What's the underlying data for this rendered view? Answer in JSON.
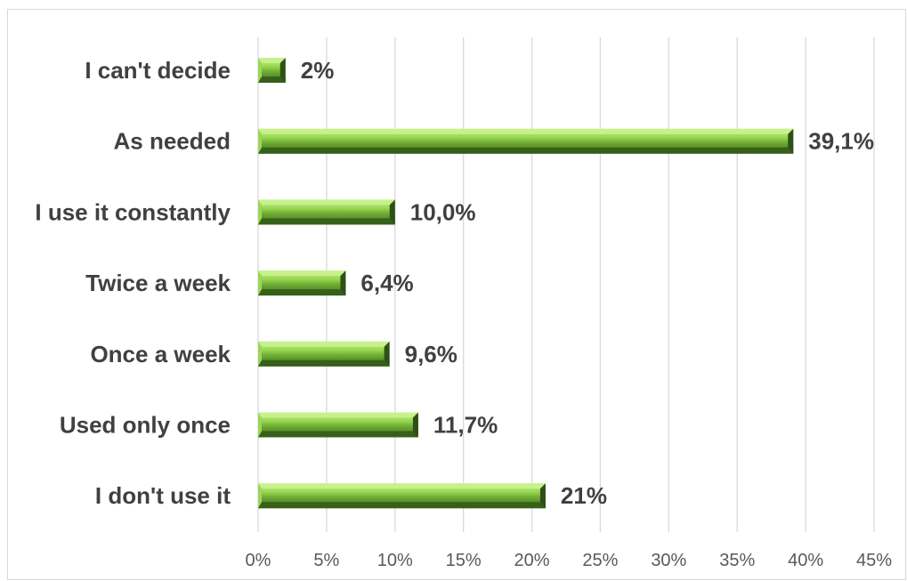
{
  "chart_data": {
    "type": "bar",
    "orientation": "horizontal",
    "categories": [
      "I can't decide",
      "As needed",
      "I use it constantly",
      "Twice a week",
      "Once a week",
      "Used only once",
      "I don't use it"
    ],
    "values": [
      2,
      39.1,
      10.0,
      6.4,
      9.6,
      11.7,
      21
    ],
    "value_labels": [
      "2%",
      "39,1%",
      "10,0%",
      "6,4%",
      "9,6%",
      "11,7%",
      "21%"
    ],
    "xlim": [
      0,
      45
    ],
    "xticks": [
      0,
      5,
      10,
      15,
      20,
      25,
      30,
      35,
      40,
      45
    ],
    "xtick_labels": [
      "0%",
      "5%",
      "10%",
      "15%",
      "20%",
      "25%",
      "30%",
      "35%",
      "40%",
      "45%"
    ],
    "grid": "vertical",
    "legend": "none",
    "colors": {
      "bar_light": "#a6e060",
      "bar_mid": "#7fbf3f",
      "bar_dark": "#3f6a1f",
      "bar_shadow": "#2e4f16",
      "gridline": "#d9d9d9",
      "text": "#404040",
      "tick_text": "#595959"
    }
  }
}
